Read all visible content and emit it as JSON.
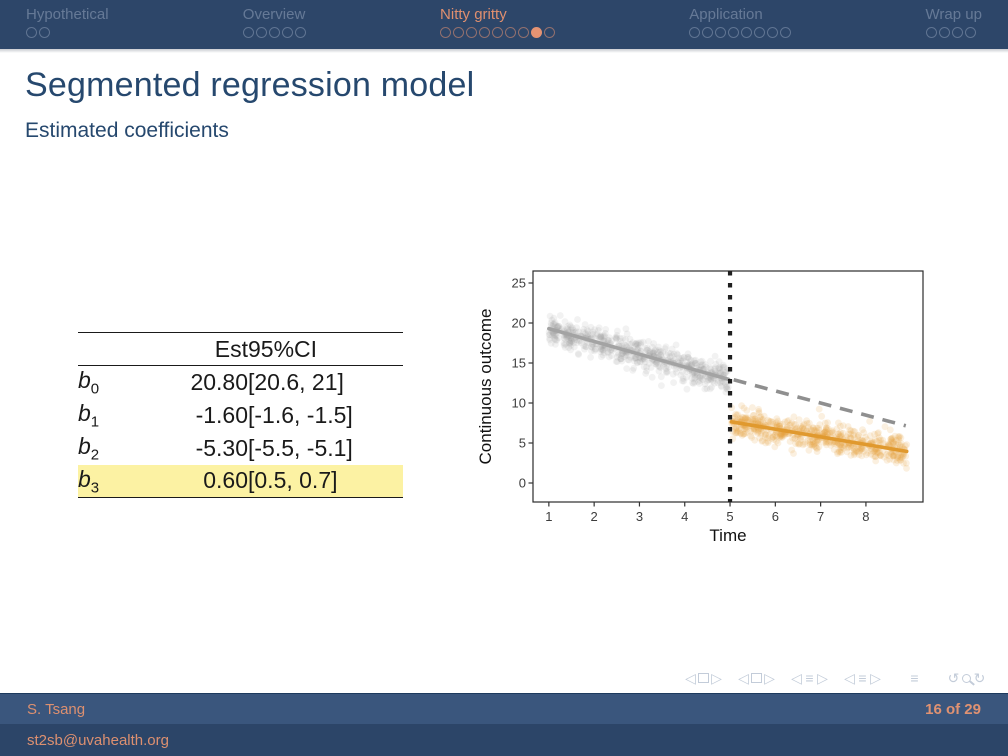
{
  "navbar": {
    "sections": [
      {
        "label": "Hypothetical",
        "dots": 2,
        "active_dot": -1,
        "active": false
      },
      {
        "label": "Overview",
        "dots": 5,
        "active_dot": -1,
        "active": false
      },
      {
        "label": "Nitty gritty",
        "dots": 9,
        "active_dot": 7,
        "active": true
      },
      {
        "label": "Application",
        "dots": 8,
        "active_dot": -1,
        "active": false
      },
      {
        "label": "Wrap up",
        "dots": 4,
        "active_dot": -1,
        "active": false
      }
    ],
    "bar_color": "#2d4669",
    "active_color": "#df8f6f"
  },
  "slide": {
    "title": "Segmented regression model",
    "subtitle": "Estimated coefficients"
  },
  "table": {
    "headers": {
      "label": "",
      "est": "Est",
      "ci": "95%CI"
    },
    "rows": [
      {
        "label": "b",
        "sub": "0",
        "est": "20.80",
        "ci": "[20.6, 21]",
        "highlight": false
      },
      {
        "label": "b",
        "sub": "1",
        "est": "-1.60",
        "ci": "[-1.6, -1.5]",
        "highlight": false
      },
      {
        "label": "b",
        "sub": "2",
        "est": "-5.30",
        "ci": "[-5.5, -5.1]",
        "highlight": false
      },
      {
        "label": "b",
        "sub": "3",
        "est": "0.60",
        "ci": "[0.5, 0.7]",
        "highlight": true
      }
    ],
    "highlight_color": "#fcf2a3"
  },
  "chart_data": {
    "type": "scatter",
    "title": "",
    "xlabel": "Time",
    "ylabel": "Continuous outcome",
    "xticks": [
      1,
      2,
      3,
      4,
      5,
      6,
      7,
      8
    ],
    "yticks": [
      0,
      5,
      10,
      15,
      20,
      25
    ],
    "xlim": [
      0.65,
      9.26
    ],
    "ylim": [
      -2.375,
      26.5
    ],
    "grid": false,
    "legend": "none",
    "series": [
      {
        "name": "pre-intervention",
        "color": "#9a9a9a",
        "line_color": "#a3a3a3",
        "x_range": [
          1.0,
          4.97
        ],
        "trend_start": [
          1.0,
          19.3
        ],
        "trend_end": [
          4.97,
          12.95
        ],
        "n_points": 600,
        "noise_sd": 0.92,
        "point_opacity": 0.13
      },
      {
        "name": "post-intervention",
        "color": "#e6a23c",
        "line_color": "#e0992e",
        "x_range": [
          5.03,
          8.9
        ],
        "trend_start": [
          5.03,
          7.65
        ],
        "trend_end": [
          8.9,
          3.95
        ],
        "n_points": 620,
        "noise_sd": 0.92,
        "point_opacity": 0.16
      }
    ],
    "counterfactual_line": {
      "style": "dashed",
      "color": "#8f8f8f",
      "start": [
        5.08,
        12.9
      ],
      "end": [
        8.88,
        7.15
      ]
    },
    "intervention_line": {
      "x": 5,
      "style": "dotted",
      "color": "#1f1f1f"
    }
  },
  "nav_symbols": [
    {
      "name": "prev-slide",
      "glyph": "◁"
    },
    {
      "name": "frame-indicator",
      "glyph": "frame"
    },
    {
      "name": "next-slide",
      "glyph": "▷"
    },
    {
      "name": "prev-frame",
      "glyph": "◁"
    },
    {
      "name": "frames-indicator",
      "glyph": "frames"
    },
    {
      "name": "next-frame",
      "glyph": "▷"
    },
    {
      "name": "prev-subsection",
      "glyph": "◁"
    },
    {
      "name": "subsection-indicator",
      "glyph": "≡"
    },
    {
      "name": "next-subsection",
      "glyph": "▷"
    },
    {
      "name": "prev-section",
      "glyph": "◁"
    },
    {
      "name": "section-indicator",
      "glyph": "≡"
    },
    {
      "name": "next-section",
      "glyph": "▷"
    },
    {
      "name": "document-outline",
      "glyph": "≡"
    },
    {
      "name": "go-back",
      "glyph": "↺"
    },
    {
      "name": "search",
      "glyph": "mag"
    },
    {
      "name": "go-forward",
      "glyph": "↻"
    }
  ],
  "footer": {
    "author": "S. Tsang",
    "page": "16 of 29",
    "email": "st2sb@uvahealth.org"
  }
}
